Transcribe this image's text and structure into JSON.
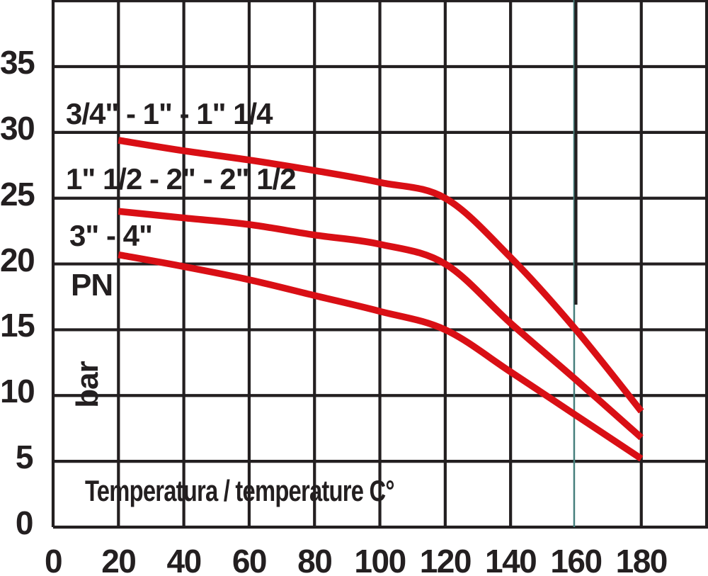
{
  "chart_data": {
    "type": "line",
    "title": "",
    "xlabel": "Temperatura / temperature C°",
    "ylabel": "PN",
    "ylabel_unit": "bar",
    "x_ticks": [
      0,
      20,
      40,
      60,
      80,
      100,
      120,
      140,
      160,
      180
    ],
    "y_ticks": [
      0,
      5,
      10,
      15,
      20,
      25,
      30,
      35
    ],
    "x_gridlines": [
      0,
      20,
      40,
      60,
      80,
      100,
      120,
      140,
      160,
      180,
      200
    ],
    "xlim": [
      0,
      202
    ],
    "ylim": [
      0,
      40
    ],
    "grid": true,
    "legend_position": "labels-inside-plot",
    "special_x_gridline": {
      "value": 160,
      "color": "#47807d"
    },
    "series": [
      {
        "name": "3/4\" - 1\" - 1\" 1/4",
        "color": "#d90f15",
        "x": [
          20,
          40,
          60,
          80,
          100,
          120,
          140,
          160,
          180
        ],
        "values": [
          29.4,
          28.6,
          27.9,
          27.1,
          26.2,
          25,
          20.5,
          15,
          8.8
        ]
      },
      {
        "name": "1\" 1/2 - 2\" - 2\" 1/2",
        "color": "#d90f15",
        "x": [
          20,
          40,
          60,
          80,
          100,
          120,
          140,
          160,
          180
        ],
        "values": [
          24,
          23.5,
          23,
          22.2,
          21.5,
          20,
          15.5,
          11.2,
          6.8
        ]
      },
      {
        "name": "3\" - 4\"",
        "color": "#d90f15",
        "x": [
          20,
          40,
          60,
          80,
          100,
          120,
          140,
          160,
          180
        ],
        "values": [
          20.7,
          19.8,
          18.8,
          17.6,
          16.4,
          15,
          11.8,
          8.5,
          5.2
        ]
      }
    ]
  },
  "colors": {
    "background": "#ffffff",
    "grid": "#231f20",
    "text": "#231f20",
    "curve": "#d90f15",
    "special_gridline": "#47807d"
  }
}
